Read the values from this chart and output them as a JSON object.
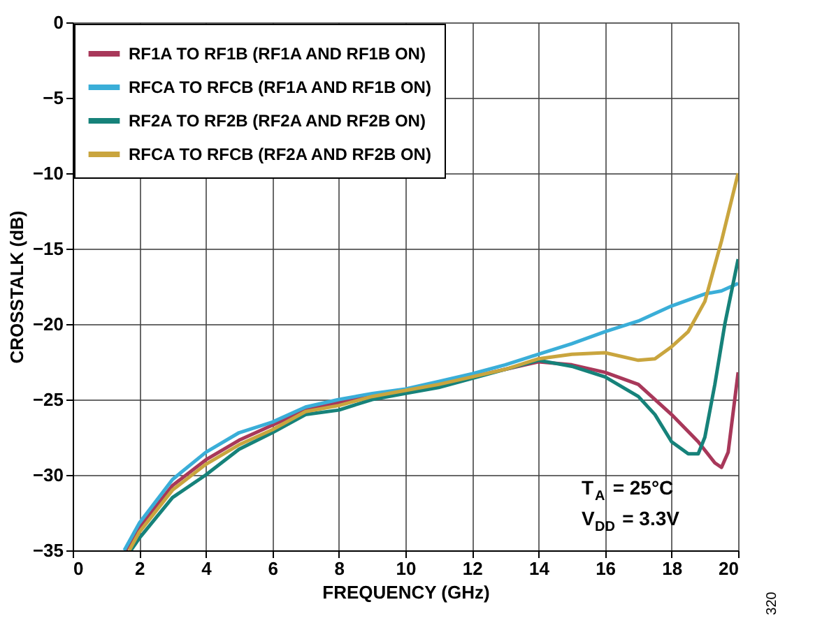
{
  "chart_data": {
    "type": "line",
    "xlabel": "FREQUENCY (GHz)",
    "ylabel": "CROSSTALK (dB)",
    "xlim": [
      0,
      20
    ],
    "ylim": [
      -35,
      0
    ],
    "xticks": [
      0,
      2,
      4,
      6,
      8,
      10,
      12,
      14,
      16,
      18,
      20
    ],
    "yticks": [
      -35,
      -30,
      -25,
      -20,
      -15,
      -10,
      -5,
      0
    ],
    "grid": true,
    "legend": "top left",
    "line_style": "solid",
    "marker": "none",
    "annotations": [
      "T$_{A}$ = 25°C",
      "V$_{DD}$ = 3.3V",
      "320"
    ],
    "series": [
      {
        "name": "RF1A TO RF1B (RF1A AND RF1B ON)",
        "color": "#a8385a",
        "x": [
          1.6,
          2,
          3,
          4,
          5,
          6,
          7,
          8,
          9,
          10,
          11,
          12,
          13,
          14,
          15,
          16,
          17,
          18,
          18.8,
          19.3,
          19.5,
          19.7,
          20
        ],
        "values": [
          -35,
          -33.5,
          -30.7,
          -29,
          -27.7,
          -26.7,
          -25.7,
          -25.2,
          -24.8,
          -24.4,
          -24,
          -23.5,
          -23,
          -22.5,
          -22.7,
          -23.2,
          -24,
          -26,
          -27.8,
          -29.2,
          -29.5,
          -28.5,
          -23.2
        ]
      },
      {
        "name": "RFCA TO RFCB (RF1A AND RF1B ON)",
        "color": "#3aaed8",
        "x": [
          1.55,
          2,
          3,
          4,
          5,
          6,
          7,
          8,
          9,
          10,
          11,
          12,
          13,
          14,
          15,
          16,
          17,
          18,
          19,
          19.5,
          20
        ],
        "values": [
          -35,
          -33.2,
          -30.3,
          -28.5,
          -27.2,
          -26.5,
          -25.5,
          -25,
          -24.6,
          -24.3,
          -23.8,
          -23.3,
          -22.7,
          -22,
          -21.3,
          -20.5,
          -19.8,
          -18.8,
          -18,
          -17.8,
          -17.3
        ]
      },
      {
        "name": "RF2A TO RF2B (RF2A AND RF2B ON)",
        "color": "#16827a",
        "x": [
          1.75,
          2,
          3,
          4,
          5,
          6,
          7,
          8,
          9,
          10,
          11,
          12,
          13,
          14,
          15,
          16,
          17,
          17.5,
          18,
          18.5,
          18.8,
          19,
          19.3,
          19.6,
          20
        ],
        "values": [
          -35,
          -34.2,
          -31.5,
          -30,
          -28.3,
          -27.2,
          -26,
          -25.7,
          -25,
          -24.6,
          -24.2,
          -23.6,
          -23,
          -22.4,
          -22.8,
          -23.5,
          -24.8,
          -26,
          -27.8,
          -28.6,
          -28.6,
          -27.5,
          -24,
          -20,
          -15.7
        ]
      },
      {
        "name": "RFCA TO RFCB (RF2A AND RF2B ON)",
        "color": "#c9a53e",
        "x": [
          1.7,
          2,
          3,
          4,
          5,
          6,
          7,
          8,
          9,
          10,
          11,
          12,
          13,
          14,
          15,
          16,
          17,
          17.5,
          18,
          18.5,
          19,
          19.5,
          20
        ],
        "values": [
          -35,
          -33.8,
          -31,
          -29.3,
          -28,
          -27,
          -25.8,
          -25.4,
          -24.8,
          -24.4,
          -24,
          -23.5,
          -23,
          -22.3,
          -22,
          -21.9,
          -22.4,
          -22.3,
          -21.5,
          -20.5,
          -18.5,
          -14.5,
          -10
        ]
      }
    ]
  }
}
